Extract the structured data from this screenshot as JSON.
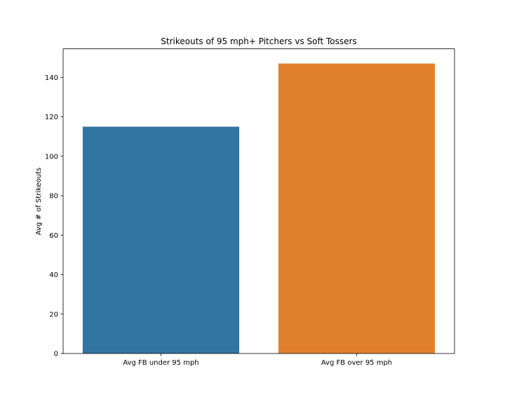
{
  "chart_data": {
    "type": "bar",
    "title": "Strikeouts of 95 mph+ Pitchers vs Soft Tossers",
    "xlabel": "",
    "ylabel": "Avg # of Strikeouts",
    "categories": [
      "Avg FB under 95 mph",
      "Avg FB over 95 mph"
    ],
    "values": [
      115,
      147
    ],
    "colors": [
      "#3274a1",
      "#e1812c"
    ],
    "ylim": [
      0,
      154.5
    ],
    "yticks": [
      0,
      20,
      40,
      60,
      80,
      100,
      120,
      140
    ],
    "grid": false,
    "legend": "none"
  }
}
